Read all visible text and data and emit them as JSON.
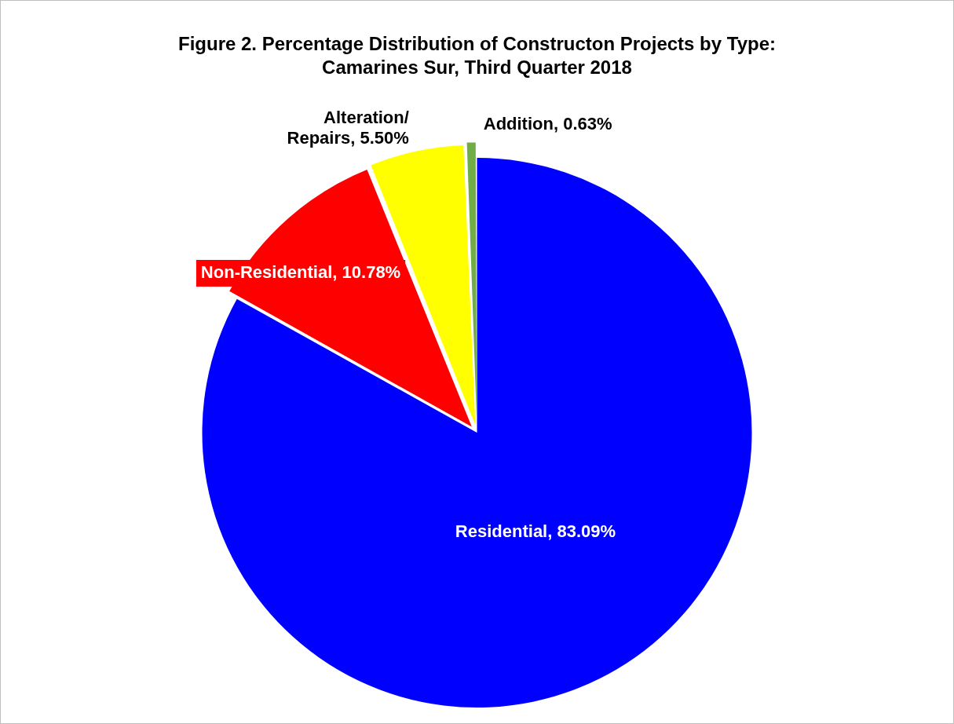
{
  "chart_data": {
    "type": "pie",
    "title": "Figure 2. Percentage Distribution of Constructon Projects by Type: Camarines Sur, Third Quarter 2018",
    "categories": [
      "Residential",
      "Non-Residential",
      "Alteration/ Repairs",
      "Addition"
    ],
    "values": [
      83.09,
      10.78,
      5.5,
      0.63
    ],
    "value_labels": [
      "83.09%",
      "10.78%",
      "5.50%",
      "0.63%"
    ],
    "colors": [
      "#0000ff",
      "#ff0000",
      "#ffff00",
      "#70ad47"
    ],
    "legend": false
  }
}
